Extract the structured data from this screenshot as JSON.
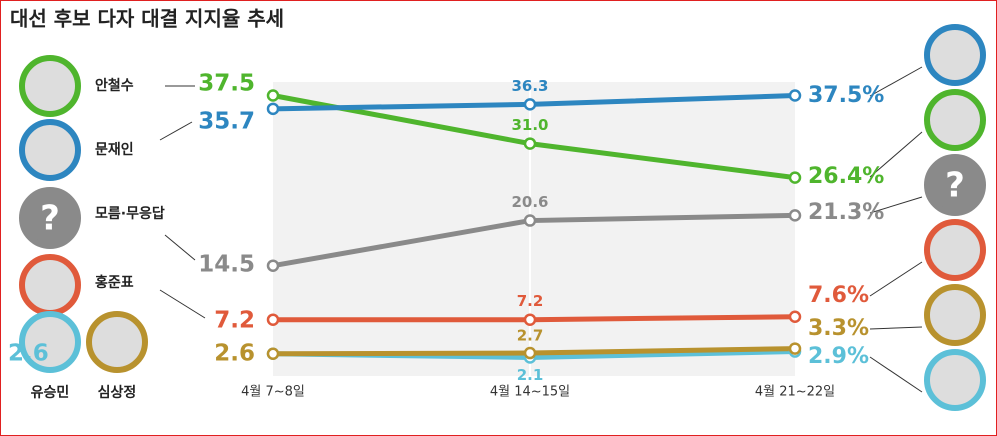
{
  "chart_data": {
    "type": "line",
    "title": "대선 후보 다자 대결 지지율 추세",
    "categories": [
      "4월 7~8일",
      "4월 14~15일",
      "4월 21~22일"
    ],
    "ylim": [
      0,
      40
    ],
    "series": [
      {
        "name": "안철수",
        "color": "#4fb52d",
        "values": [
          37.5,
          31.0,
          26.4
        ],
        "value_labels": [
          "37.5",
          "31.0",
          "26.4%"
        ]
      },
      {
        "name": "문재인",
        "color": "#2d86c0",
        "values": [
          35.7,
          36.3,
          37.5
        ],
        "value_labels": [
          "35.7",
          "36.3",
          "37.5%"
        ]
      },
      {
        "name": "모름·무응답",
        "color": "#8a8a8a",
        "values": [
          14.5,
          20.6,
          21.3
        ],
        "value_labels": [
          "14.5",
          "20.6",
          "21.3%"
        ]
      },
      {
        "name": "홍준표",
        "color": "#e05a3b",
        "values": [
          7.2,
          7.2,
          7.6
        ],
        "value_labels": [
          "7.2",
          "7.2",
          "7.6%"
        ]
      },
      {
        "name": "유승민",
        "color": "#5cc0d8",
        "values": [
          2.6,
          2.1,
          2.9
        ],
        "value_labels": [
          "2.6",
          "2.1",
          "2.9%"
        ]
      },
      {
        "name": "심상정",
        "color": "#b8922e",
        "values": [
          2.6,
          2.7,
          3.3
        ],
        "value_labels": [
          "2.6",
          "2.7",
          "3.3%"
        ]
      }
    ],
    "unknown_mark": "?"
  }
}
